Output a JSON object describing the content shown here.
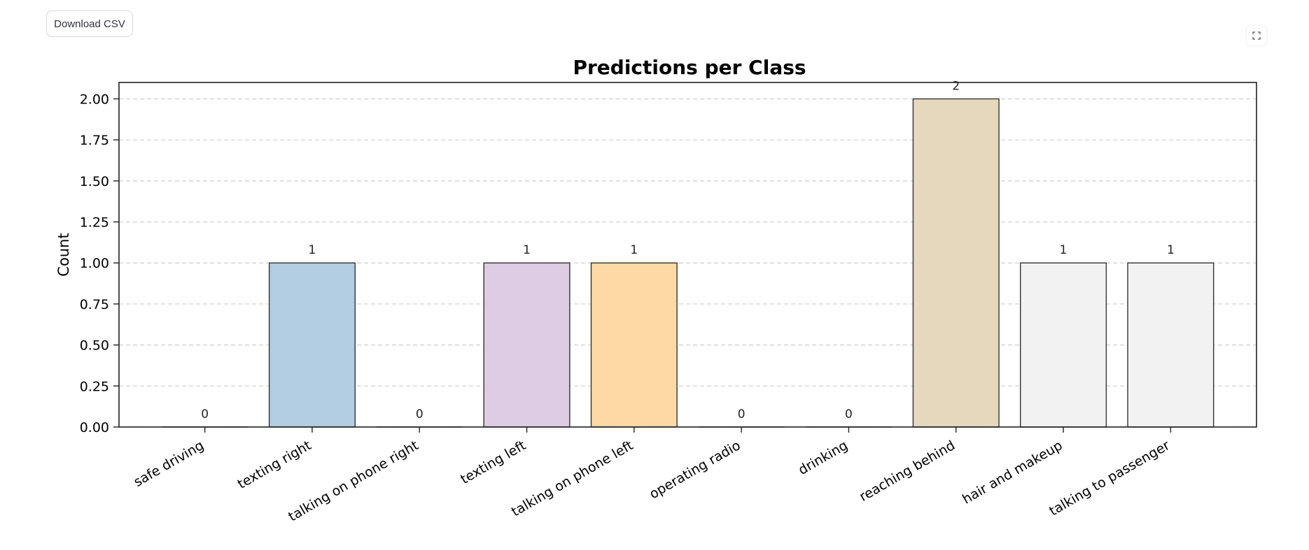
{
  "toolbar": {
    "download_label": "Download CSV",
    "fullscreen_icon": "expand-icon"
  },
  "chart_data": {
    "type": "bar",
    "title": "Predictions per Class",
    "xlabel": "",
    "ylabel": "Count",
    "ylim": [
      0,
      2.1
    ],
    "yticks": [
      "0.00",
      "0.25",
      "0.50",
      "0.75",
      "1.00",
      "1.25",
      "1.50",
      "1.75",
      "2.00"
    ],
    "grid": "horizontal dashed",
    "categories": [
      "safe driving",
      "texting right",
      "talking on phone right",
      "texting left",
      "talking on phone left",
      "operating radio",
      "drinking",
      "reaching behind",
      "hair and makeup",
      "talking to passenger"
    ],
    "values": [
      0,
      1,
      0,
      1,
      1,
      0,
      0,
      2,
      1,
      1
    ],
    "value_labels": [
      "0",
      "1",
      "0",
      "1",
      "1",
      "0",
      "0",
      "2",
      "1",
      "1"
    ],
    "colors": [
      "#fbb4ae",
      "#b3cde3",
      "#ccebc5",
      "#decbe4",
      "#fed9a6",
      "#ffffcc",
      "#e5d8bd",
      "#e5d8bd",
      "#f2f2f2",
      "#f2f2f2"
    ]
  }
}
